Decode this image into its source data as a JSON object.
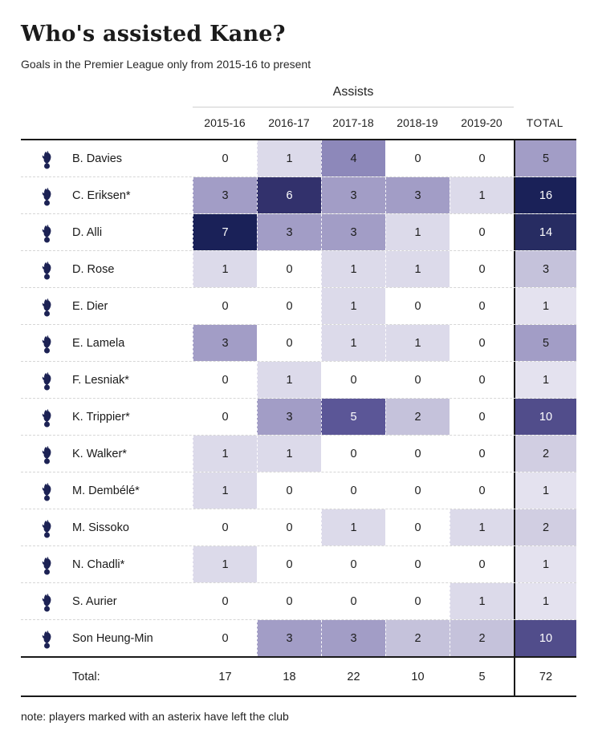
{
  "title": "Who's assisted Kane?",
  "subtitle": "Goals in the Premier League only from 2015-16 to present",
  "assists_header": "Assists",
  "columns": [
    "2015-16",
    "2016-17",
    "2017-18",
    "2018-19",
    "2019-20"
  ],
  "total_label": "TOTAL",
  "rows": [
    {
      "player": "B. Davies",
      "values": [
        0,
        1,
        4,
        0,
        0
      ],
      "total": 5
    },
    {
      "player": "C. Eriksen*",
      "values": [
        3,
        6,
        3,
        3,
        1
      ],
      "total": 16
    },
    {
      "player": "D. Alli",
      "values": [
        7,
        3,
        3,
        1,
        0
      ],
      "total": 14
    },
    {
      "player": "D. Rose",
      "values": [
        1,
        0,
        1,
        1,
        0
      ],
      "total": 3
    },
    {
      "player": "E. Dier",
      "values": [
        0,
        0,
        1,
        0,
        0
      ],
      "total": 1
    },
    {
      "player": "E. Lamela",
      "values": [
        3,
        0,
        1,
        1,
        0
      ],
      "total": 5
    },
    {
      "player": "F. Lesniak*",
      "values": [
        0,
        1,
        0,
        0,
        0
      ],
      "total": 1
    },
    {
      "player": "K. Trippier*",
      "values": [
        0,
        3,
        5,
        2,
        0
      ],
      "total": 10
    },
    {
      "player": "K. Walker*",
      "values": [
        1,
        1,
        0,
        0,
        0
      ],
      "total": 2
    },
    {
      "player": "M. Dembélé*",
      "values": [
        1,
        0,
        0,
        0,
        0
      ],
      "total": 1
    },
    {
      "player": "M. Sissoko",
      "values": [
        0,
        0,
        1,
        0,
        1
      ],
      "total": 2
    },
    {
      "player": "N. Chadli*",
      "values": [
        1,
        0,
        0,
        0,
        0
      ],
      "total": 1
    },
    {
      "player": "S. Aurier",
      "values": [
        0,
        0,
        0,
        0,
        1
      ],
      "total": 1
    },
    {
      "player": "Son Heung-Min",
      "values": [
        0,
        3,
        3,
        2,
        2
      ],
      "total": 10
    }
  ],
  "totals_row": {
    "label": "Total:",
    "values": [
      17,
      18,
      22,
      10,
      5
    ],
    "total": 72
  },
  "note": "note: players marked with an asterix have left the club",
  "icons": {
    "club_crest": "tottenham-crest-icon"
  },
  "colors": {
    "rule": "#191919",
    "crest": "#1c2254",
    "dark_text": "#1d1d1d",
    "light_text": "#ffffff",
    "cell_scale": {
      "0": "#ffffff",
      "1": "#dcdaea",
      "2": "#c5c2db",
      "3": "#a29dc6",
      "4": "#8d88ba",
      "5": "#5b5697",
      "6": "#32316c",
      "7": "#1a2158"
    },
    "total_scale": {
      "1": "#e4e2ef",
      "2": "#d1cee2",
      "3": "#c5c2db",
      "5": "#a29dc6",
      "10": "#514d8b",
      "14": "#272c62",
      "16": "#1a2158"
    },
    "cell_light_text_min": 5,
    "total_light_text_min": 10
  },
  "chart_data": {
    "type": "heatmap",
    "title": "Who's assisted Kane?",
    "subtitle": "Goals in the Premier League only from 2015-16 to present",
    "group_header": "Assists",
    "columns": [
      "2015-16",
      "2016-17",
      "2017-18",
      "2018-19",
      "2019-20"
    ],
    "rows": [
      "B. Davies",
      "C. Eriksen*",
      "D. Alli",
      "D. Rose",
      "E. Dier",
      "E. Lamela",
      "F. Lesniak*",
      "K. Trippier*",
      "K. Walker*",
      "M. Dembélé*",
      "M. Sissoko",
      "N. Chadli*",
      "S. Aurier",
      "Son Heung-Min"
    ],
    "values": [
      [
        0,
        1,
        4,
        0,
        0
      ],
      [
        3,
        6,
        3,
        3,
        1
      ],
      [
        7,
        3,
        3,
        1,
        0
      ],
      [
        1,
        0,
        1,
        1,
        0
      ],
      [
        0,
        0,
        1,
        0,
        0
      ],
      [
        3,
        0,
        1,
        1,
        0
      ],
      [
        0,
        1,
        0,
        0,
        0
      ],
      [
        0,
        3,
        5,
        2,
        0
      ],
      [
        1,
        1,
        0,
        0,
        0
      ],
      [
        1,
        0,
        0,
        0,
        0
      ],
      [
        0,
        0,
        1,
        0,
        1
      ],
      [
        1,
        0,
        0,
        0,
        0
      ],
      [
        0,
        0,
        0,
        0,
        1
      ],
      [
        0,
        3,
        3,
        2,
        2
      ]
    ],
    "row_totals": [
      5,
      16,
      14,
      3,
      1,
      5,
      1,
      10,
      2,
      1,
      2,
      1,
      1,
      10
    ],
    "column_totals": [
      17,
      18,
      22,
      10,
      5
    ],
    "grand_total": 72,
    "value_range": [
      0,
      7
    ],
    "note": "note: players marked with an asterix have left the club"
  }
}
